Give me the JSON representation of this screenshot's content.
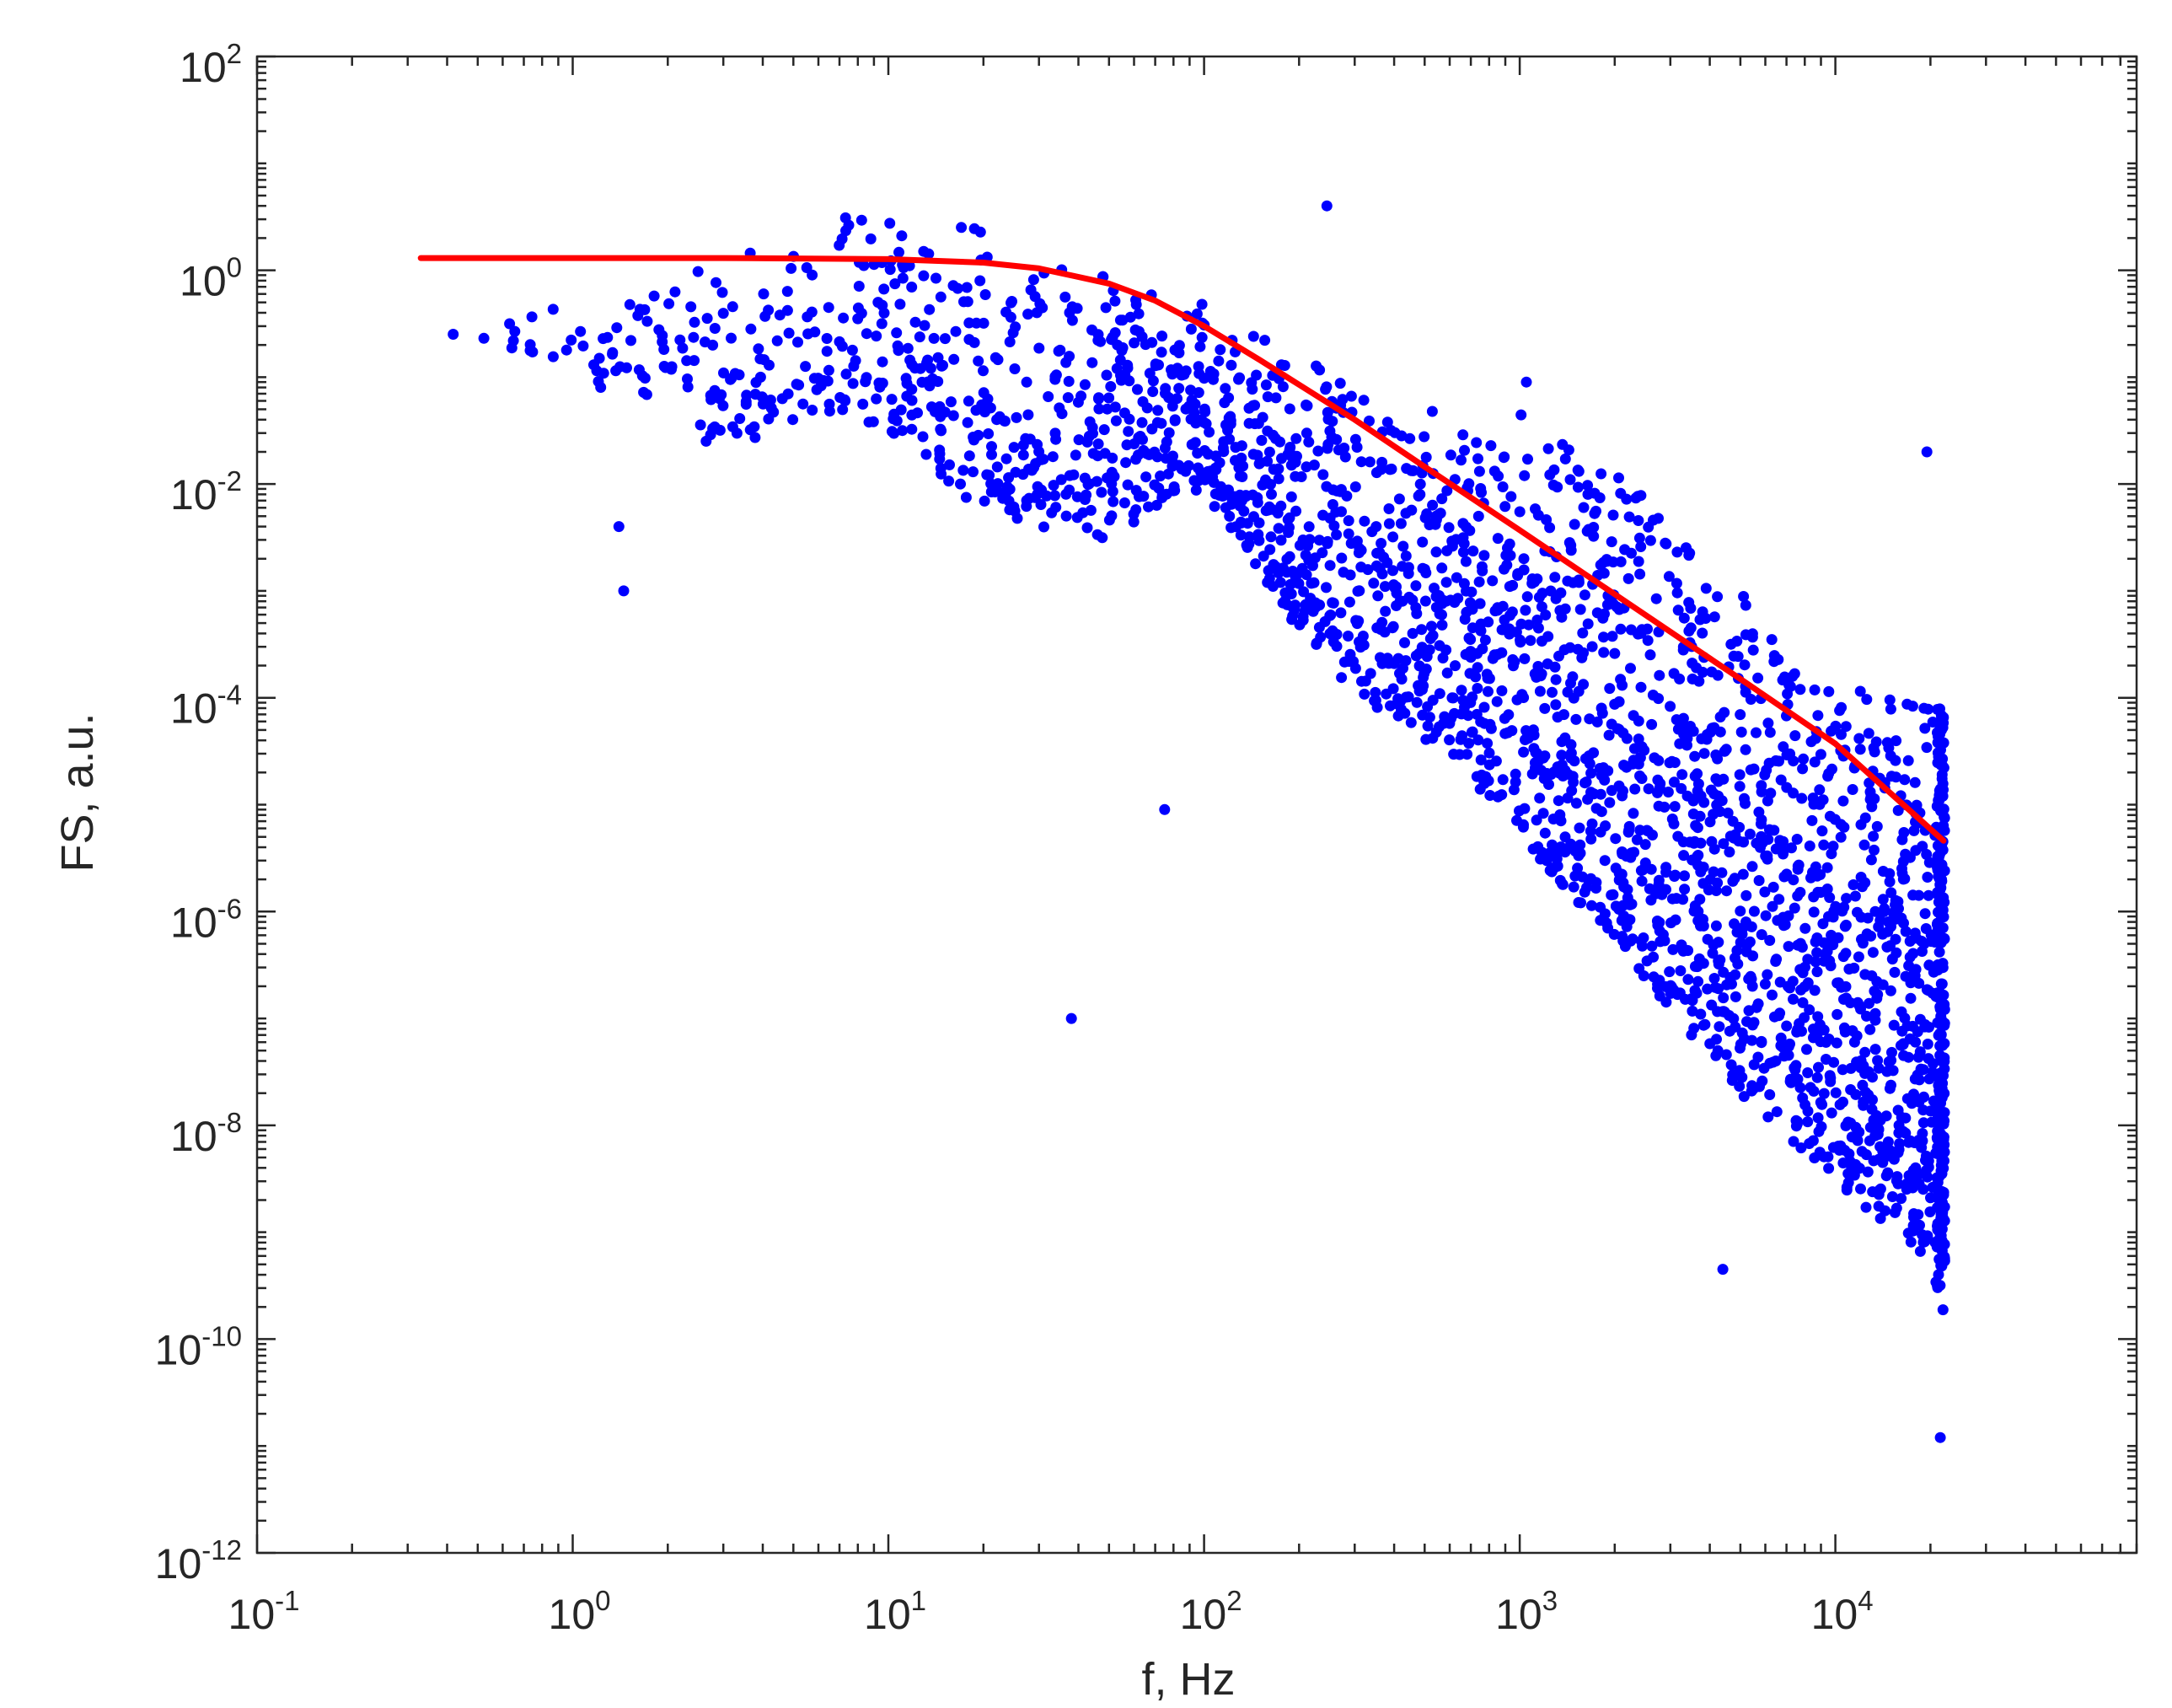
{
  "chart_data": {
    "type": "scatter",
    "xlabel": "f, Hz",
    "ylabel": "FS, a.u.",
    "x_scale": "log",
    "y_scale": "log",
    "xlim": [
      0.1,
      90000
    ],
    "ylim": [
      1e-12,
      100
    ],
    "grid": false,
    "x_ticks": [
      {
        "base": "10",
        "exp": "-1",
        "value": 0.1
      },
      {
        "base": "10",
        "exp": "0",
        "value": 1
      },
      {
        "base": "10",
        "exp": "1",
        "value": 10
      },
      {
        "base": "10",
        "exp": "2",
        "value": 100
      },
      {
        "base": "10",
        "exp": "3",
        "value": 1000
      },
      {
        "base": "10",
        "exp": "4",
        "value": 10000
      }
    ],
    "y_ticks": [
      {
        "base": "10",
        "exp": "-12",
        "value": 1e-12
      },
      {
        "base": "10",
        "exp": "-10",
        "value": 1e-10
      },
      {
        "base": "10",
        "exp": "-8",
        "value": 1e-08
      },
      {
        "base": "10",
        "exp": "-6",
        "value": 1e-06
      },
      {
        "base": "10",
        "exp": "-4",
        "value": 0.0001
      },
      {
        "base": "10",
        "exp": "-2",
        "value": 0.01
      },
      {
        "base": "10",
        "exp": "0",
        "value": 1
      },
      {
        "base": "10",
        "exp": "2",
        "value": 100
      }
    ],
    "colors": {
      "scatter": "#0000ff",
      "fit": "#ff0000",
      "axes": "#262626"
    },
    "series": [
      {
        "style": "scatter",
        "envelope": {
          "f": [
            0.33,
            1,
            3,
            6,
            10,
            20,
            50,
            90,
            130,
            200,
            300,
            600,
            1000,
            2000,
            5000,
            10000,
            20000,
            22000
          ],
          "upper": [
            0.3,
            0.5,
            1.2,
            3,
            4,
            2.5,
            1.0,
            0.6,
            0.3,
            0.2,
            0.08,
            0.05,
            0.05,
            0.015,
            0.001,
            0.0002,
            0.0001,
            4e-05
          ],
          "lower": [
            0.25,
            0.1,
            0.02,
            0.05,
            0.03,
            0.005,
            0.003,
            0.01,
            0.003,
            0.0004,
            0.0001,
            3e-05,
            5e-06,
            5e-07,
            2e-08,
            3e-09,
            5e-10,
            1e-10
          ]
        },
        "outliers": [
          {
            "x": 1.4,
            "y": 0.004
          },
          {
            "x": 1.45,
            "y": 0.001
          },
          {
            "x": 38,
            "y": 1e-07
          },
          {
            "x": 75,
            "y": 9e-06
          },
          {
            "x": 245,
            "y": 4.0
          },
          {
            "x": 1050,
            "y": 0.09
          },
          {
            "x": 4400,
            "y": 4.5e-10
          },
          {
            "x": 21500,
            "y": 1.2e-11
          },
          {
            "x": 19500,
            "y": 0.02
          }
        ]
      },
      {
        "style": "line",
        "x": [
          0.33,
          1,
          3,
          10,
          20,
          30,
          50,
          70,
          100,
          150,
          200,
          300,
          500,
          1000,
          2000,
          5000,
          10000,
          22000
        ],
        "y": [
          1.3,
          1.3,
          1.3,
          1.27,
          1.18,
          1.04,
          0.75,
          0.52,
          0.3,
          0.145,
          0.085,
          0.04,
          0.0145,
          0.0037,
          0.00093,
          0.00015,
          3.72e-05,
          4.6e-06
        ]
      }
    ]
  }
}
